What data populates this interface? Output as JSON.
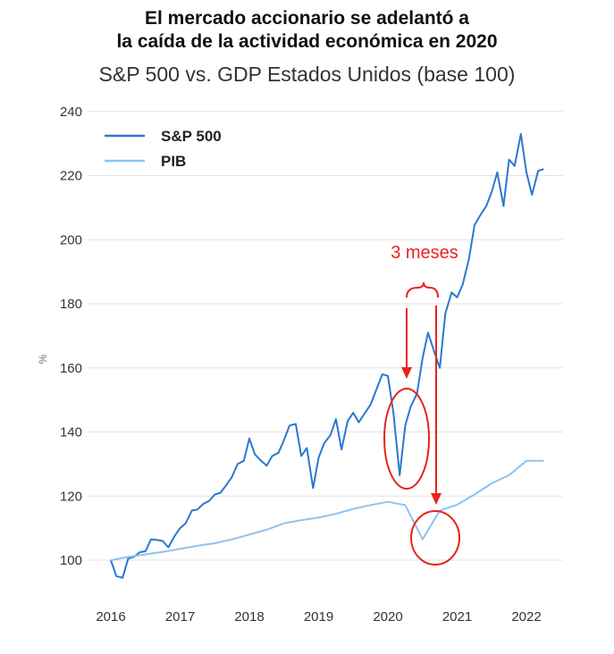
{
  "title_line1": "El mercado accionario se adelantó a",
  "title_line2": "la caída de la actividad económica en 2020",
  "subtitle": "S&P 500 vs. GDP Estados Unidos (base 100)",
  "chart_data": {
    "type": "line",
    "ylabel": "%",
    "xlabel": "",
    "ylim": [
      88,
      242
    ],
    "xlim": [
      2016.0,
      2022.5
    ],
    "yticks": [
      100,
      120,
      140,
      160,
      180,
      200,
      220,
      240
    ],
    "xticks": [
      2016,
      2017,
      2018,
      2019,
      2020,
      2021,
      2022
    ],
    "grid": true,
    "legend_position": "top-left",
    "series": [
      {
        "name": "S&P 500",
        "color": "#2b78d0",
        "x": [
          2016.0,
          2016.08,
          2016.17,
          2016.25,
          2016.33,
          2016.42,
          2016.5,
          2016.58,
          2016.67,
          2016.75,
          2016.83,
          2016.92,
          2017.0,
          2017.08,
          2017.17,
          2017.25,
          2017.33,
          2017.42,
          2017.5,
          2017.58,
          2017.67,
          2017.75,
          2017.83,
          2017.92,
          2018.0,
          2018.08,
          2018.17,
          2018.25,
          2018.33,
          2018.42,
          2018.5,
          2018.58,
          2018.67,
          2018.75,
          2018.83,
          2018.92,
          2019.0,
          2019.08,
          2019.17,
          2019.25,
          2019.33,
          2019.42,
          2019.5,
          2019.58,
          2019.67,
          2019.75,
          2019.83,
          2019.92,
          2020.0,
          2020.08,
          2020.17,
          2020.25,
          2020.33,
          2020.42,
          2020.5,
          2020.58,
          2020.67,
          2020.75,
          2020.83,
          2020.92,
          2021.0,
          2021.08,
          2021.17,
          2021.25,
          2021.33,
          2021.42,
          2021.5,
          2021.58,
          2021.67,
          2021.75,
          2021.83,
          2021.92,
          2022.0,
          2022.08,
          2022.17,
          2022.25
        ],
        "values": [
          100,
          95,
          94.5,
          100.5,
          101,
          102.5,
          102.8,
          106.5,
          106.3,
          106,
          104,
          107.5,
          110,
          111.5,
          115.5,
          115.8,
          117.5,
          118.5,
          120.5,
          121,
          123.5,
          126,
          130,
          131,
          138,
          133,
          131,
          129.5,
          132.5,
          133.5,
          137.5,
          142,
          142.5,
          132.5,
          135,
          122.5,
          132,
          136.5,
          139,
          144,
          134.5,
          143.5,
          146,
          143,
          146,
          148.5,
          153,
          158,
          157.5,
          146,
          126.5,
          142,
          148,
          152,
          163,
          171,
          165,
          160,
          177,
          183.5,
          182,
          186,
          194,
          204.5,
          207.5,
          210.5,
          215,
          221,
          210.5,
          225,
          223,
          233,
          221,
          214,
          221.5,
          222
        ]
      },
      {
        "name": "PIB",
        "color": "#8cc3f2",
        "x": [
          2016.0,
          2016.25,
          2016.5,
          2016.75,
          2017.0,
          2017.25,
          2017.5,
          2017.75,
          2018.0,
          2018.25,
          2018.5,
          2018.75,
          2019.0,
          2019.25,
          2019.5,
          2019.75,
          2020.0,
          2020.25,
          2020.5,
          2020.75,
          2021.0,
          2021.25,
          2021.5,
          2021.75,
          2022.0,
          2022.25
        ],
        "values": [
          100,
          101,
          101.8,
          102.6,
          103.5,
          104.5,
          105.3,
          106.5,
          108,
          109.5,
          111.5,
          112.5,
          113.3,
          114.5,
          116,
          117.2,
          118.2,
          117.2,
          106.5,
          115.5,
          117.3,
          120.5,
          124,
          126.5,
          131,
          131
        ]
      }
    ],
    "annotations": {
      "label": "3 meses",
      "color": "#e8231f"
    }
  }
}
